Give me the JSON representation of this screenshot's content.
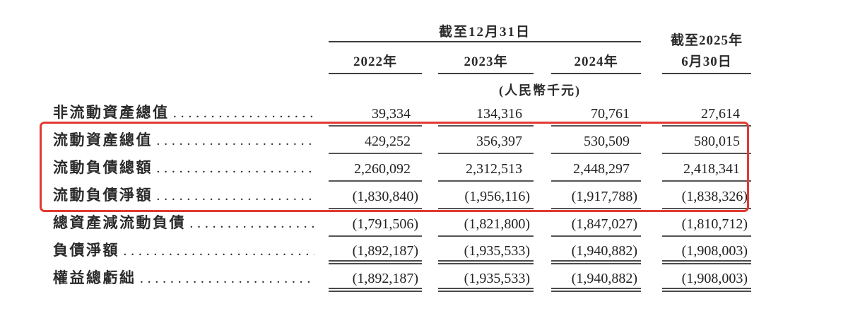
{
  "header": {
    "period_group": "截至12月31日",
    "period_2025_line1": "截至2025年",
    "period_2025_line2": "6月30日",
    "year_cols": [
      "2022年",
      "2023年",
      "2024年"
    ],
    "unit_note": "(人民幣千元)"
  },
  "shared": {
    "dot_leader": "........................................................"
  },
  "highlight": {
    "color": "#e23a30"
  },
  "rows": [
    {
      "label": "非流動資產總值",
      "values": [
        "39,334",
        "134,316",
        "70,761",
        "27,614"
      ],
      "underline": "single",
      "highlighted": false
    },
    {
      "label": "流動資產總值",
      "values": [
        "429,252",
        "356,397",
        "530,509",
        "580,015"
      ],
      "underline": "single",
      "highlighted": true
    },
    {
      "label": "流動負債總額",
      "values": [
        "2,260,092",
        "2,312,513",
        "2,448,297",
        "2,418,341"
      ],
      "underline": "single",
      "highlighted": true
    },
    {
      "label": "流動負債淨額",
      "values": [
        "(1,830,840)",
        "(1,956,116)",
        "(1,917,788)",
        "(1,838,326)"
      ],
      "underline": "single",
      "highlighted": true
    },
    {
      "label": "總資產減流動負債",
      "values": [
        "(1,791,506)",
        "(1,821,800)",
        "(1,847,027)",
        "(1,810,712)"
      ],
      "underline": "single",
      "highlighted": false
    },
    {
      "label": "負債淨額",
      "values": [
        "(1,892,187)",
        "(1,935,533)",
        "(1,940,882)",
        "(1,908,003)"
      ],
      "underline": "double",
      "highlighted": false
    },
    {
      "label": "權益總虧絀",
      "values": [
        "(1,892,187)",
        "(1,935,533)",
        "(1,940,882)",
        "(1,908,003)"
      ],
      "underline": "double",
      "highlighted": false
    }
  ]
}
